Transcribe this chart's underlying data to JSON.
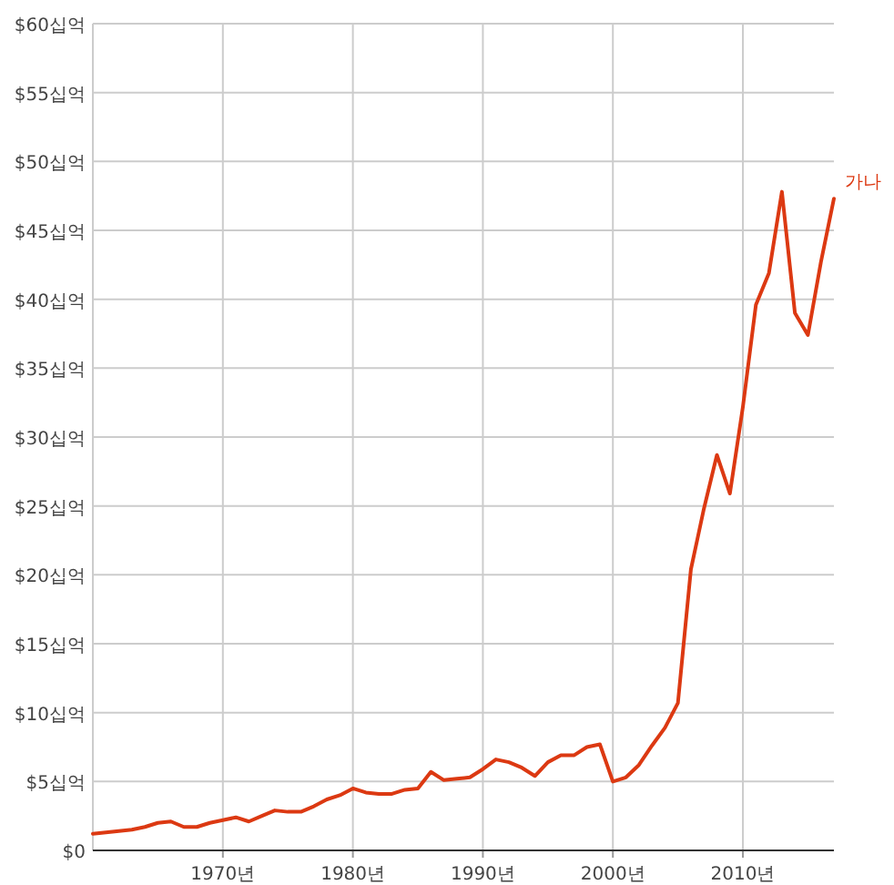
{
  "chart_data": {
    "type": "line",
    "x": [
      1960,
      1961,
      1962,
      1963,
      1964,
      1965,
      1966,
      1967,
      1968,
      1969,
      1970,
      1971,
      1972,
      1973,
      1974,
      1975,
      1976,
      1977,
      1978,
      1979,
      1980,
      1981,
      1982,
      1983,
      1984,
      1985,
      1986,
      1987,
      1988,
      1989,
      1990,
      1991,
      1992,
      1993,
      1994,
      1995,
      1996,
      1997,
      1998,
      1999,
      2000,
      2001,
      2002,
      2003,
      2004,
      2005,
      2006,
      2007,
      2008,
      2009,
      2010,
      2011,
      2012,
      2013,
      2014,
      2015,
      2016,
      2017
    ],
    "series": [
      {
        "name": "가나",
        "color": "#dc3912",
        "values": [
          1.2,
          1.3,
          1.4,
          1.5,
          1.7,
          2.0,
          2.1,
          1.7,
          1.7,
          2.0,
          2.2,
          2.4,
          2.1,
          2.5,
          2.9,
          2.8,
          2.8,
          3.2,
          3.7,
          4.0,
          4.5,
          4.2,
          4.1,
          4.1,
          4.4,
          4.5,
          5.7,
          5.1,
          5.2,
          5.3,
          5.9,
          6.6,
          6.4,
          6.0,
          5.4,
          6.4,
          6.9,
          6.9,
          7.5,
          7.7,
          5.0,
          5.3,
          6.2,
          7.6,
          8.9,
          10.7,
          20.4,
          24.8,
          28.7,
          25.9,
          32.2,
          39.6,
          41.9,
          47.8,
          39.0,
          37.4,
          42.7,
          47.3
        ]
      }
    ],
    "xlim": [
      1960,
      2017
    ],
    "xticks": [
      {
        "value": 1970,
        "label": "1970년"
      },
      {
        "value": 1980,
        "label": "1980년"
      },
      {
        "value": 1990,
        "label": "1990년"
      },
      {
        "value": 2000,
        "label": "2000년"
      },
      {
        "value": 2010,
        "label": "2010년"
      }
    ],
    "ylim": [
      0,
      60
    ],
    "yticks": [
      {
        "value": 0,
        "label": "$0"
      },
      {
        "value": 5,
        "label": "$5십억"
      },
      {
        "value": 10,
        "label": "$10십억"
      },
      {
        "value": 15,
        "label": "$15십억"
      },
      {
        "value": 20,
        "label": "$20십억"
      },
      {
        "value": 25,
        "label": "$25십억"
      },
      {
        "value": 30,
        "label": "$30십억"
      },
      {
        "value": 35,
        "label": "$35십억"
      },
      {
        "value": 40,
        "label": "$40십억"
      },
      {
        "value": 45,
        "label": "$45십억"
      },
      {
        "value": 50,
        "label": "$50십억"
      },
      {
        "value": 55,
        "label": "$55십억"
      },
      {
        "value": 60,
        "label": "$60십억"
      }
    ],
    "grid": true,
    "legend": "right"
  }
}
